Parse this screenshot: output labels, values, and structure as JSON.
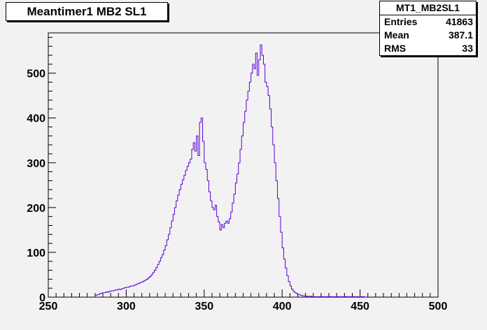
{
  "title": "Meantimer1 MB2 SL1",
  "stats": {
    "name": "MT1_MB2SL1",
    "rows": [
      {
        "label": "Entries",
        "value": "41863"
      },
      {
        "label": "Mean",
        "value": "387.1"
      },
      {
        "label": "RMS",
        "value": "33"
      }
    ]
  },
  "colors": {
    "line": "#5b00d6",
    "frame_bg": "#f2f2f2",
    "box_bg": "#ffffff"
  },
  "chart_data": {
    "type": "histogram",
    "title": "Meantimer1 MB2 SL1",
    "xlabel": "",
    "ylabel": "",
    "xlim": [
      250,
      500
    ],
    "ylim": [
      0,
      590
    ],
    "x_ticks": [
      250,
      300,
      350,
      400,
      450,
      500
    ],
    "y_ticks": [
      0,
      100,
      200,
      300,
      400,
      500
    ],
    "grid": false,
    "bin_width": 1,
    "x_start": 280,
    "values": [
      4,
      5,
      6,
      8,
      9,
      10,
      10,
      12,
      11,
      13,
      14,
      14,
      15,
      16,
      16,
      18,
      17,
      19,
      20,
      21,
      22,
      22,
      24,
      25,
      25,
      27,
      28,
      30,
      31,
      33,
      34,
      36,
      38,
      40,
      43,
      46,
      50,
      55,
      60,
      66,
      73,
      80,
      88,
      95,
      105,
      115,
      128,
      140,
      155,
      170,
      185,
      200,
      215,
      228,
      240,
      252,
      262,
      272,
      283,
      292,
      300,
      308,
      330,
      345,
      326,
      360,
      316,
      390,
      400,
      348,
      300,
      285,
      260,
      235,
      215,
      200,
      195,
      205,
      180,
      168,
      150,
      162,
      155,
      165,
      170,
      165,
      175,
      190,
      210,
      230,
      255,
      275,
      300,
      330,
      360,
      390,
      415,
      440,
      460,
      480,
      500,
      520,
      510,
      545,
      495,
      530,
      563,
      540,
      520,
      480,
      470,
      450,
      420,
      380,
      340,
      300,
      260,
      220,
      180,
      145,
      110,
      85,
      65,
      48,
      35,
      25,
      18,
      13,
      10,
      8,
      6,
      5,
      4,
      3,
      3,
      2,
      2,
      2,
      2,
      1,
      1,
      1,
      1,
      1,
      1,
      1,
      1,
      1,
      1,
      1,
      1,
      1,
      1,
      1,
      1,
      1,
      1,
      1,
      1,
      1,
      1,
      1,
      1,
      1,
      1,
      1,
      1,
      1,
      1,
      1,
      1,
      1,
      1,
      0
    ]
  }
}
